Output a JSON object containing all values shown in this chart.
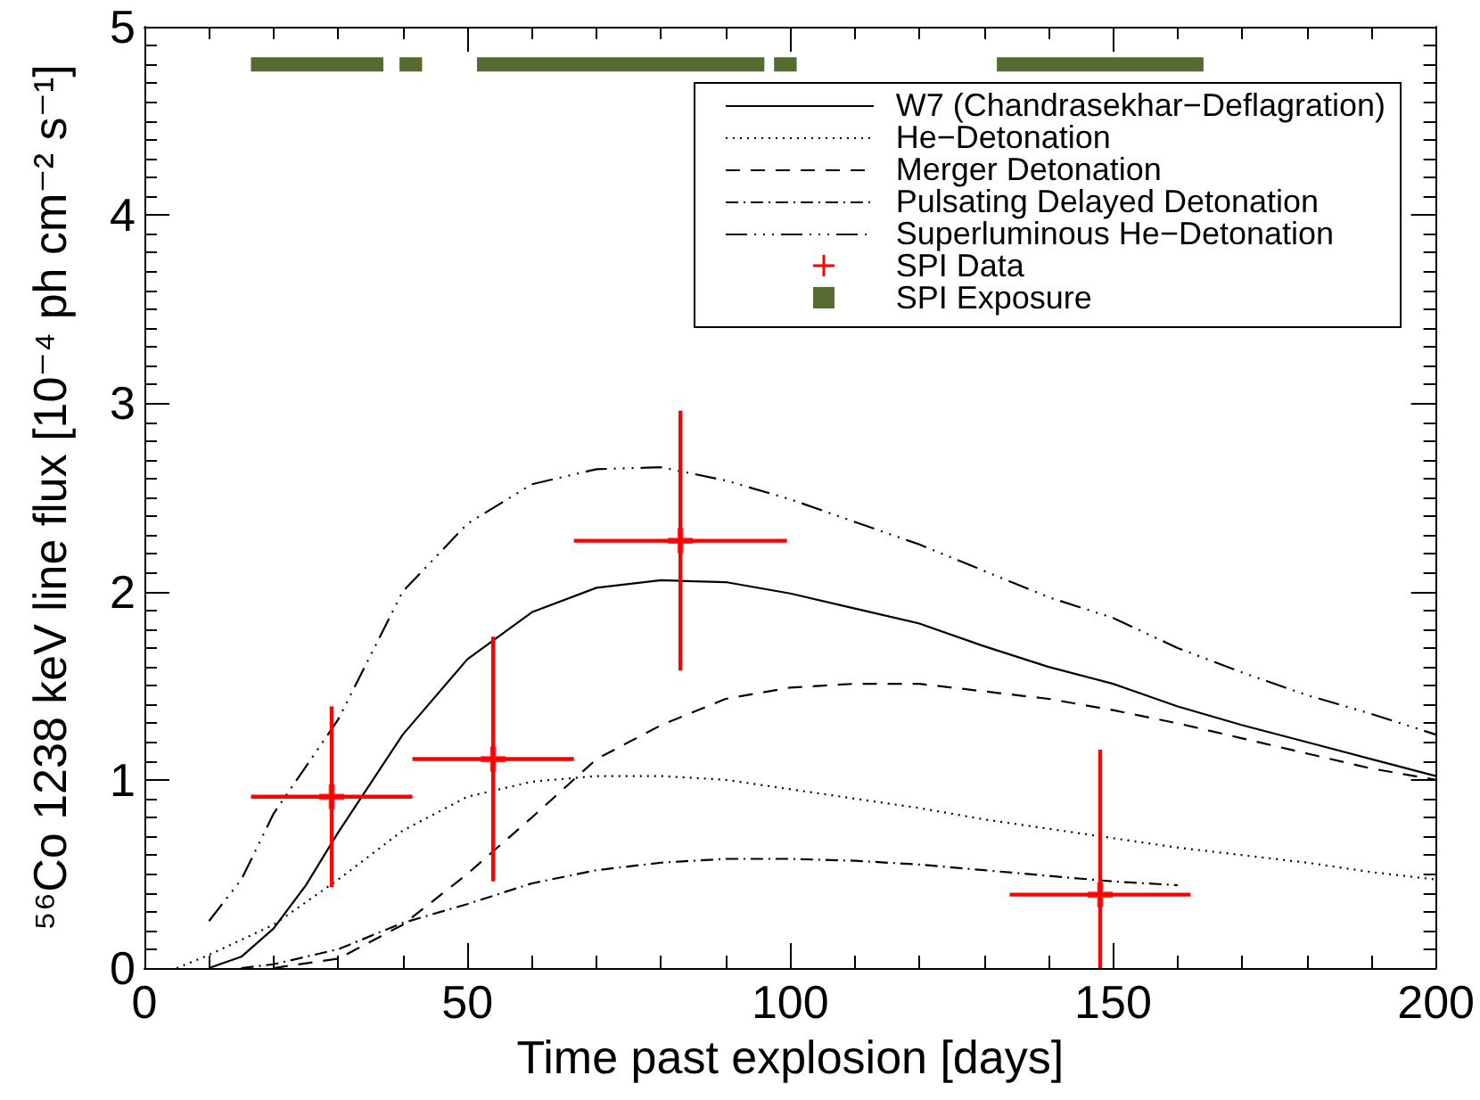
{
  "chart_data": {
    "type": "line",
    "xlabel": "Time past explosion [days]",
    "ylabel": "⁵⁶Co 1238 keV line flux [10⁻⁴ ph cm⁻² s⁻¹]",
    "xlim": [
      0,
      200
    ],
    "xticks": [
      0,
      {
        "value": 10,
        "label": null
      },
      {
        "value": 20,
        "label": null
      },
      {
        "value": 30,
        "label": null
      },
      {
        "value": 40,
        "label": null
      },
      50,
      {
        "value": 60,
        "label": null
      },
      {
        "value": 70,
        "label": null
      },
      {
        "value": 80,
        "label": null
      },
      {
        "value": 90,
        "label": null
      },
      100,
      {
        "value": 110,
        "label": null
      },
      {
        "value": 120,
        "label": null
      },
      {
        "value": 130,
        "label": null
      },
      {
        "value": 140,
        "label": null
      },
      150,
      {
        "value": 160,
        "label": null
      },
      {
        "value": 170,
        "label": null
      },
      {
        "value": 180,
        "label": null
      },
      {
        "value": 190,
        "label": null
      },
      200
    ],
    "ylim": [
      0,
      5
    ],
    "yticks": [
      0,
      {
        "value": 0.1,
        "label": null
      },
      {
        "value": 0.2,
        "label": null
      },
      {
        "value": 0.3,
        "label": null
      },
      {
        "value": 0.4,
        "label": null
      },
      {
        "value": 0.5,
        "label": null
      },
      {
        "value": 0.6,
        "label": null
      },
      {
        "value": 0.7,
        "label": null
      },
      {
        "value": 0.8,
        "label": null
      },
      {
        "value": 0.9,
        "label": null
      },
      1,
      {
        "value": 1.1,
        "label": null
      },
      {
        "value": 1.2,
        "label": null
      },
      {
        "value": 1.3,
        "label": null
      },
      {
        "value": 1.4,
        "label": null
      },
      {
        "value": 1.5,
        "label": null
      },
      {
        "value": 1.6,
        "label": null
      },
      {
        "value": 1.7,
        "label": null
      },
      {
        "value": 1.8,
        "label": null
      },
      {
        "value": 1.9,
        "label": null
      },
      2,
      {
        "value": 2.1,
        "label": null
      },
      {
        "value": 2.2,
        "label": null
      },
      {
        "value": 2.3,
        "label": null
      },
      {
        "value": 2.4,
        "label": null
      },
      {
        "value": 2.5,
        "label": null
      },
      {
        "value": 2.6,
        "label": null
      },
      {
        "value": 2.7,
        "label": null
      },
      {
        "value": 2.8,
        "label": null
      },
      {
        "value": 2.9,
        "label": null
      },
      3,
      {
        "value": 3.1,
        "label": null
      },
      {
        "value": 3.2,
        "label": null
      },
      {
        "value": 3.3,
        "label": null
      },
      {
        "value": 3.4,
        "label": null
      },
      {
        "value": 3.5,
        "label": null
      },
      {
        "value": 3.6,
        "label": null
      },
      {
        "value": 3.7,
        "label": null
      },
      {
        "value": 3.8,
        "label": null
      },
      {
        "value": 3.9,
        "label": null
      },
      4,
      {
        "value": 4.1,
        "label": null
      },
      {
        "value": 4.2,
        "label": null
      },
      {
        "value": 4.3,
        "label": null
      },
      {
        "value": 4.4,
        "label": null
      },
      {
        "value": 4.5,
        "label": null
      },
      {
        "value": 4.6,
        "label": null
      },
      {
        "value": 4.7,
        "label": null
      },
      {
        "value": 4.8,
        "label": null
      },
      {
        "value": 4.9,
        "label": null
      },
      5
    ],
    "legend": "top right",
    "marker": "none",
    "series": [
      {
        "name": "W7 (Chandrasekhar−Deflagration)",
        "line_style": "solid",
        "color": "#000000",
        "x": [
          10,
          15,
          20,
          25,
          30,
          40,
          50,
          60,
          70,
          80,
          90,
          100,
          110,
          120,
          130,
          140,
          150,
          160,
          170,
          180,
          190,
          200
        ],
        "values": [
          0,
          0.06,
          0.21,
          0.44,
          0.72,
          1.24,
          1.64,
          1.89,
          2.02,
          2.06,
          2.05,
          1.99,
          1.91,
          1.83,
          1.71,
          1.6,
          1.51,
          1.39,
          1.29,
          1.2,
          1.11,
          1.02
        ]
      },
      {
        "name": "He−Detonation",
        "line_style": "dotted",
        "color": "#000000",
        "x": [
          5,
          10,
          20,
          30,
          40,
          50,
          60,
          70,
          80,
          90,
          100,
          110,
          120,
          130,
          140,
          150,
          160,
          170,
          180,
          190,
          200
        ],
        "values": [
          0,
          0.07,
          0.23,
          0.47,
          0.73,
          0.91,
          0.99,
          1.02,
          1.02,
          1.0,
          0.95,
          0.9,
          0.85,
          0.79,
          0.74,
          0.69,
          0.64,
          0.6,
          0.56,
          0.51,
          0.47
        ]
      },
      {
        "name": "Merger Detonation",
        "line_style": "dashed",
        "color": "#000000",
        "x": [
          20,
          30,
          40,
          50,
          60,
          70,
          80,
          90,
          100,
          110,
          120,
          130,
          140,
          150,
          160,
          170,
          180,
          190,
          200
        ],
        "values": [
          0,
          0.05,
          0.23,
          0.5,
          0.8,
          1.11,
          1.29,
          1.43,
          1.49,
          1.51,
          1.51,
          1.47,
          1.43,
          1.37,
          1.3,
          1.22,
          1.14,
          1.06,
          1.0
        ]
      },
      {
        "name": "Pulsating Delayed Detonation",
        "line_style": "dashdot",
        "color": "#000000",
        "x": [
          15,
          20,
          30,
          40,
          50,
          60,
          70,
          80,
          90,
          100,
          110,
          120,
          130,
          140,
          150,
          160
        ],
        "values": [
          0,
          0.02,
          0.1,
          0.24,
          0.34,
          0.45,
          0.52,
          0.56,
          0.58,
          0.58,
          0.57,
          0.55,
          0.52,
          0.49,
          0.46,
          0.44
        ]
      },
      {
        "name": "Superluminous He−Detonation",
        "line_style": "dashdotdot",
        "color": "#000000",
        "x": [
          10,
          15,
          20,
          30,
          40,
          50,
          60,
          70,
          80,
          90,
          100,
          110,
          120,
          130,
          140,
          150,
          160,
          170,
          180,
          190,
          200
        ],
        "values": [
          0.25,
          0.47,
          0.82,
          1.32,
          2.0,
          2.36,
          2.57,
          2.65,
          2.66,
          2.59,
          2.49,
          2.37,
          2.25,
          2.11,
          1.97,
          1.86,
          1.7,
          1.57,
          1.45,
          1.35,
          1.24
        ]
      },
      {
        "name": "SPI Data",
        "type": "scatter",
        "marker": "cross",
        "color": "#ff0000",
        "x": [
          29,
          54,
          83,
          148
        ],
        "values": [
          0.91,
          1.11,
          2.27,
          0.39
        ],
        "errors": [
          0.48,
          0.65,
          0.69,
          [
            0,
            1.16
          ]
        ],
        "xerrors": [
          12.5,
          12.5,
          16.5,
          14
        ]
      },
      {
        "name": "SPI Exposure",
        "line_style": "solid",
        "color": "#556b2f",
        "x": [
          16.5,
          37
        ],
        "values": [
          4.8,
          4.8
        ]
      },
      {
        "line_style": "solid",
        "color": "#556b2f",
        "x": [
          39.5,
          43
        ],
        "values": [
          4.8,
          4.8
        ]
      },
      {
        "line_style": "solid",
        "color": "#556b2f",
        "x": [
          51.5,
          96
        ],
        "values": [
          4.8,
          4.8
        ]
      },
      {
        "line_style": "solid",
        "color": "#556b2f",
        "x": [
          97.5,
          101
        ],
        "values": [
          4.8,
          4.8
        ]
      },
      {
        "line_style": "solid",
        "color": "#556b2f",
        "x": [
          132,
          164
        ],
        "values": [
          4.8,
          4.8
        ]
      }
    ]
  }
}
